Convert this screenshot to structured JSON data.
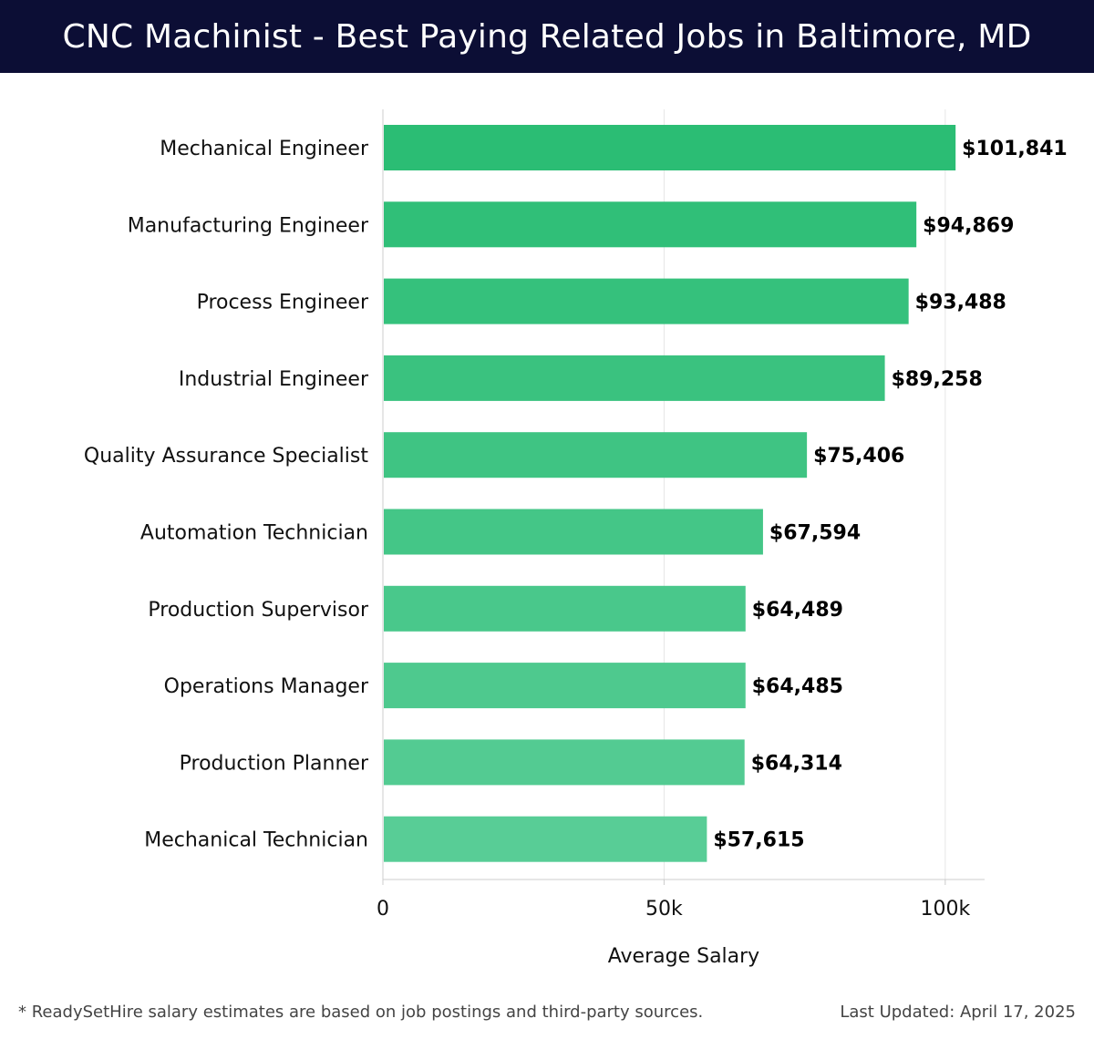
{
  "header": {
    "title": "CNC Machinist - Best Paying Related Jobs in Baltimore, MD"
  },
  "footer": {
    "note": "* ReadySetHire salary estimates are based on job postings and third-party sources.",
    "updated": "Last Updated: April 17, 2025"
  },
  "colors": {
    "header_bg": "#0c0e35",
    "bar_top": "#2bbd74",
    "bar_bottom": "#58cd96",
    "grid": "#e6e6e6",
    "axis": "#cccccc",
    "label": "#111111",
    "value": "#000000"
  },
  "chart_data": {
    "type": "bar",
    "orientation": "horizontal",
    "categories": [
      "Mechanical Engineer",
      "Manufacturing Engineer",
      "Process Engineer",
      "Industrial Engineer",
      "Quality Assurance Specialist",
      "Automation Technician",
      "Production Supervisor",
      "Operations Manager",
      "Production Planner",
      "Mechanical Technician"
    ],
    "values": [
      101841,
      94869,
      93488,
      89258,
      75406,
      67594,
      64489,
      64485,
      64314,
      57615
    ],
    "value_labels": [
      "$101,841",
      "$94,869",
      "$93,488",
      "$89,258",
      "$75,406",
      "$67,594",
      "$64,489",
      "$64,485",
      "$64,314",
      "$57,615"
    ],
    "title": "",
    "xlabel": "Average Salary",
    "ylabel": "",
    "xlim": [
      0,
      107000
    ],
    "xticks": [
      0,
      50000,
      100000
    ],
    "xtick_labels": [
      "0",
      "50k",
      "100k"
    ],
    "grid": true,
    "legend": "none"
  }
}
